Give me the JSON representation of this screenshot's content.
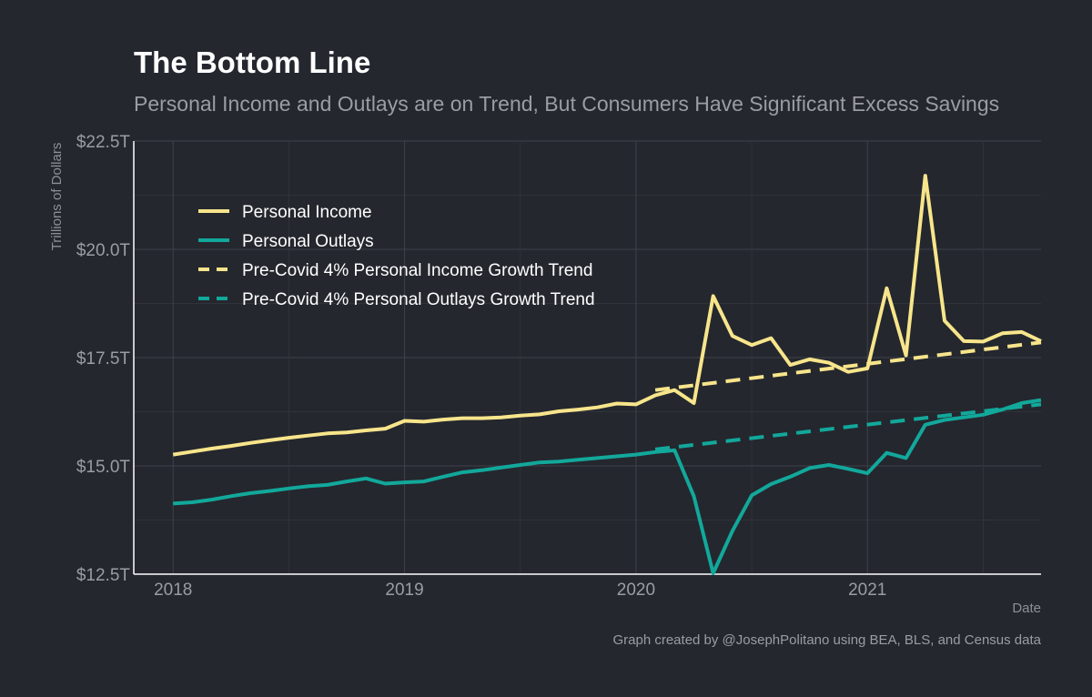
{
  "chart_data": {
    "type": "line",
    "title": "The Bottom Line",
    "subtitle": "Personal Income and Outlays are on Trend, But Consumers Have Significant Excess Savings",
    "xlabel": "Date",
    "ylabel": "Trillions of Dollars",
    "caption": "Graph created by @JosephPolitano using BEA, BLS, and Census data",
    "xlim": [
      2017.83,
      2021.75
    ],
    "ylim": [
      12.5,
      22.5
    ],
    "x_ticks": [
      {
        "value": 2018,
        "label": "2018"
      },
      {
        "value": 2019,
        "label": "2019"
      },
      {
        "value": 2020,
        "label": "2020"
      },
      {
        "value": 2021,
        "label": "2021"
      }
    ],
    "y_ticks": [
      {
        "value": 12.5,
        "label": "$12.5T"
      },
      {
        "value": 15.0,
        "label": "$15.0T"
      },
      {
        "value": 17.5,
        "label": "$17.5T"
      },
      {
        "value": 20.0,
        "label": "$20.0T"
      },
      {
        "value": 22.5,
        "label": "$22.5T"
      }
    ],
    "grid": true,
    "legend_position": "top-left",
    "x_start": "2018-01",
    "series": [
      {
        "name": "Personal Income",
        "color": "#f8e58b",
        "dash": false,
        "values": [
          15.26,
          15.33,
          15.4,
          15.46,
          15.53,
          15.59,
          15.65,
          15.7,
          15.75,
          15.77,
          15.82,
          15.86,
          16.04,
          16.02,
          16.07,
          16.1,
          16.1,
          16.12,
          16.16,
          16.19,
          16.26,
          16.3,
          16.35,
          16.44,
          16.42,
          16.63,
          16.75,
          16.45,
          18.92,
          18.0,
          17.79,
          17.95,
          17.33,
          17.46,
          17.38,
          17.17,
          17.25,
          19.1,
          17.55,
          21.7,
          18.35,
          17.88,
          17.87,
          18.06,
          18.09,
          17.88
        ]
      },
      {
        "name": "Personal Outlays",
        "color": "#12a89b",
        "dash": false,
        "values": [
          14.13,
          14.16,
          14.22,
          14.3,
          14.37,
          14.42,
          14.48,
          14.53,
          14.56,
          14.64,
          14.71,
          14.59,
          14.62,
          14.64,
          14.75,
          14.85,
          14.9,
          14.96,
          15.02,
          15.08,
          15.1,
          15.14,
          15.18,
          15.22,
          15.26,
          15.32,
          15.36,
          14.3,
          12.52,
          13.5,
          14.32,
          14.58,
          14.75,
          14.95,
          15.02,
          14.93,
          14.83,
          15.3,
          15.18,
          15.95,
          16.06,
          16.12,
          16.18,
          16.3,
          16.45,
          16.52
        ]
      },
      {
        "name": "Pre-Covid 4% Personal Income Growth Trend",
        "color": "#f8e58b",
        "dash": true,
        "x_start": "2020-02",
        "values": [
          16.75,
          17.85
        ]
      },
      {
        "name": "Pre-Covid 4% Personal Outlays Growth Trend",
        "color": "#12a89b",
        "dash": true,
        "x_start": "2020-02",
        "values": [
          15.38,
          16.42
        ]
      }
    ]
  }
}
